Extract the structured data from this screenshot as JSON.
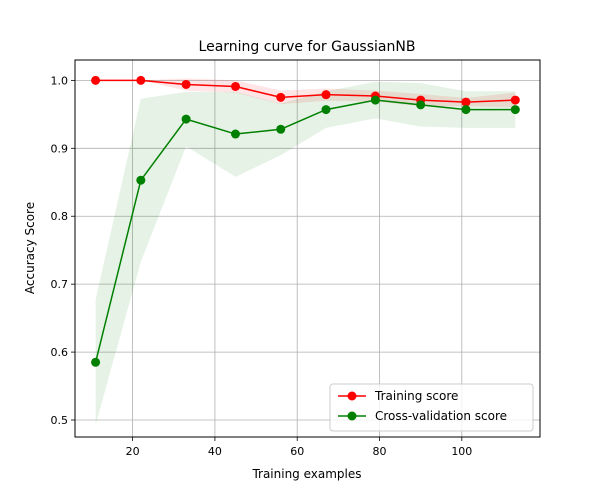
{
  "chart_data": {
    "type": "line",
    "title": "Learning curve for GaussianNB",
    "xlabel": "Training examples",
    "ylabel": "Accuracy Score",
    "xlim": [
      6,
      119
    ],
    "ylim": [
      0.475,
      1.03
    ],
    "x_ticks": [
      20,
      40,
      60,
      80,
      100
    ],
    "y_ticks": [
      0.5,
      0.6,
      0.7,
      0.8,
      0.9,
      1.0
    ],
    "x_tick_labels": [
      "20",
      "40",
      "60",
      "80",
      "100"
    ],
    "y_tick_labels": [
      "0.5",
      "0.6",
      "0.7",
      "0.8",
      "0.9",
      "1.0"
    ],
    "grid": true,
    "legend_position": "lower-right",
    "x": [
      11,
      22,
      33,
      45,
      56,
      67,
      79,
      90,
      101,
      113
    ],
    "series": [
      {
        "name": "Training score",
        "color": "#ff0000",
        "values": [
          1.0,
          1.0,
          0.994,
          0.991,
          0.975,
          0.979,
          0.977,
          0.971,
          0.968,
          0.971
        ],
        "band_low": [
          1.0,
          1.0,
          0.985,
          0.982,
          0.965,
          0.97,
          0.969,
          0.962,
          0.962,
          0.96
        ],
        "band_high": [
          1.0,
          1.0,
          1.003,
          1.0,
          0.985,
          0.988,
          0.985,
          0.98,
          0.974,
          0.982
        ]
      },
      {
        "name": "Cross-validation score",
        "color": "#008000",
        "values": [
          0.585,
          0.853,
          0.943,
          0.921,
          0.928,
          0.957,
          0.971,
          0.964,
          0.957,
          0.957
        ],
        "band_low": [
          0.493,
          0.733,
          0.903,
          0.858,
          0.89,
          0.93,
          0.944,
          0.932,
          0.93,
          0.93
        ],
        "band_high": [
          0.677,
          0.973,
          0.983,
          0.983,
          0.966,
          0.984,
          0.998,
          0.996,
          0.984,
          0.984
        ]
      }
    ]
  }
}
